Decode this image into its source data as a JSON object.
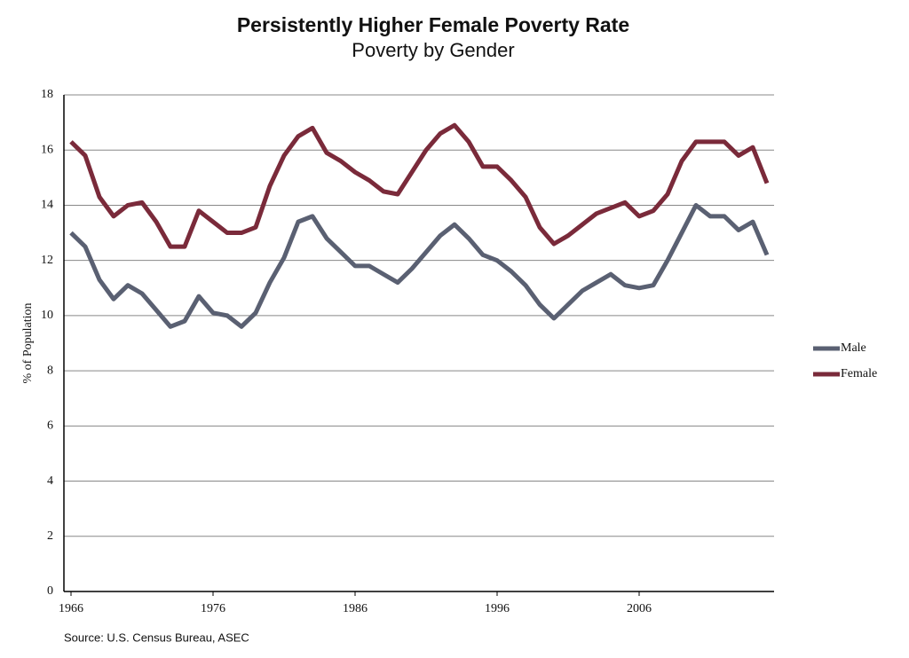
{
  "chart_data": {
    "type": "line",
    "title": "Persistently Higher Female Poverty Rate",
    "subtitle": "Poverty by Gender",
    "y_label": "% of Population",
    "source": "Source: U.S. Census Bureau, ASEC",
    "x": [
      1966,
      1967,
      1968,
      1969,
      1970,
      1971,
      1972,
      1973,
      1974,
      1975,
      1976,
      1977,
      1978,
      1979,
      1980,
      1981,
      1982,
      1983,
      1984,
      1985,
      1986,
      1987,
      1988,
      1989,
      1990,
      1991,
      1992,
      1993,
      1994,
      1995,
      1996,
      1997,
      1998,
      1999,
      2000,
      2001,
      2002,
      2003,
      2004,
      2005,
      2006,
      2007,
      2008,
      2009,
      2010,
      2011,
      2012,
      2013,
      2014,
      2015
    ],
    "series": [
      {
        "name": "Male",
        "color": "#5a6072",
        "values": [
          13.0,
          12.5,
          11.3,
          10.6,
          11.1,
          10.8,
          10.2,
          9.6,
          9.8,
          10.7,
          10.1,
          10.0,
          9.6,
          10.1,
          11.2,
          12.1,
          13.4,
          13.6,
          12.8,
          12.3,
          11.8,
          11.8,
          11.5,
          11.2,
          11.7,
          12.3,
          12.9,
          13.3,
          12.8,
          12.2,
          12.0,
          11.6,
          11.1,
          10.4,
          9.9,
          10.4,
          10.9,
          11.2,
          11.5,
          11.1,
          11.0,
          11.1,
          12.0,
          13.0,
          14.0,
          13.6,
          13.6,
          13.1,
          13.4,
          12.2
        ]
      },
      {
        "name": "Female",
        "color": "#7a2a3a",
        "values": [
          16.3,
          15.8,
          14.3,
          13.6,
          14.0,
          14.1,
          13.4,
          12.5,
          12.5,
          13.8,
          13.4,
          13.0,
          13.0,
          13.2,
          14.7,
          15.8,
          16.5,
          16.8,
          15.9,
          15.6,
          15.2,
          14.9,
          14.5,
          14.4,
          15.2,
          16.0,
          16.6,
          16.9,
          16.3,
          15.4,
          15.4,
          14.9,
          14.3,
          13.2,
          12.6,
          12.9,
          13.3,
          13.7,
          13.9,
          14.1,
          13.6,
          13.8,
          14.4,
          15.6,
          16.3,
          16.3,
          16.3,
          15.8,
          16.1,
          14.8
        ]
      }
    ],
    "xlim": [
      1965.5,
      2015.5
    ],
    "xticks": [
      1966,
      1976,
      1986,
      1996,
      2006
    ],
    "ylim": [
      0,
      18
    ],
    "yticks": [
      0,
      2,
      4,
      6,
      8,
      10,
      12,
      14,
      16,
      18
    ],
    "grid": true,
    "legend": "right"
  }
}
